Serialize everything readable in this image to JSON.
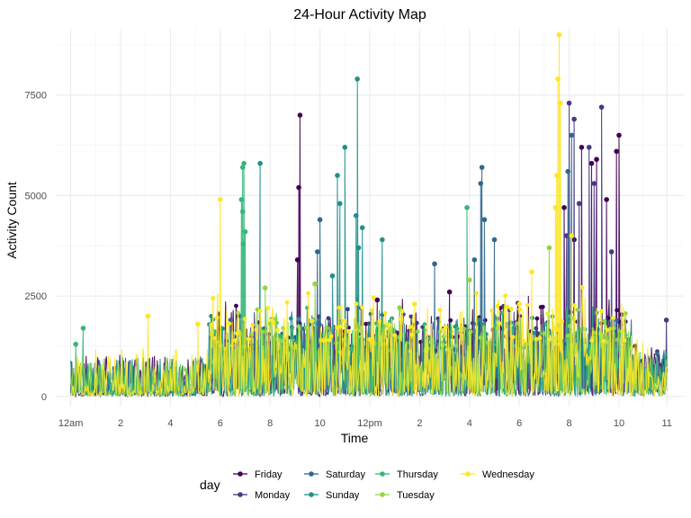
{
  "chart_data": {
    "type": "line",
    "title": "24-Hour Activity Map",
    "xlabel": "Time",
    "ylabel": "Activity Count",
    "xlim": [
      -0.6,
      24.6
    ],
    "ylim": [
      -250,
      9150
    ],
    "x_ticks": [
      {
        "x": 0,
        "label": "12am"
      },
      {
        "x": 2,
        "label": "2"
      },
      {
        "x": 4,
        "label": "4"
      },
      {
        "x": 6,
        "label": "6"
      },
      {
        "x": 8,
        "label": "8"
      },
      {
        "x": 10,
        "label": "10"
      },
      {
        "x": 12,
        "label": "12pm"
      },
      {
        "x": 14,
        "label": "2"
      },
      {
        "x": 16,
        "label": "4"
      },
      {
        "x": 18,
        "label": "6"
      },
      {
        "x": 20,
        "label": "8"
      },
      {
        "x": 22,
        "label": "10"
      },
      {
        "x": 23.92,
        "label": "11"
      }
    ],
    "y_ticks": [
      {
        "y": 0,
        "label": "0"
      },
      {
        "y": 2500,
        "label": "2500"
      },
      {
        "y": 5000,
        "label": "5000"
      },
      {
        "y": 7500,
        "label": "7500"
      }
    ],
    "grid": true,
    "legend": {
      "title": "day",
      "position": "bottom"
    },
    "series": [
      {
        "name": "Friday",
        "color": "#440154",
        "peaks": [
          {
            "x": 9.2,
            "y": 7000
          },
          {
            "x": 9.15,
            "y": 5200
          },
          {
            "x": 9.1,
            "y": 3400
          },
          {
            "x": 19.8,
            "y": 4700
          },
          {
            "x": 20.5,
            "y": 6200
          },
          {
            "x": 20.9,
            "y": 5800
          },
          {
            "x": 21.1,
            "y": 5900
          },
          {
            "x": 21.5,
            "y": 4900
          },
          {
            "x": 22.0,
            "y": 6500
          },
          {
            "x": 21.9,
            "y": 6100
          },
          {
            "x": 20.2,
            "y": 3900
          },
          {
            "x": 12.3,
            "y": 2400
          },
          {
            "x": 15.2,
            "y": 2600
          }
        ],
        "baseline_max": 1400
      },
      {
        "name": "Monday",
        "color": "#443A83",
        "peaks": [
          {
            "x": 20.0,
            "y": 7300
          },
          {
            "x": 20.2,
            "y": 6900
          },
          {
            "x": 21.3,
            "y": 7200
          },
          {
            "x": 20.8,
            "y": 6200
          },
          {
            "x": 21.0,
            "y": 5300
          },
          {
            "x": 20.4,
            "y": 4800
          },
          {
            "x": 19.9,
            "y": 4000
          },
          {
            "x": 23.9,
            "y": 1900
          },
          {
            "x": 21.7,
            "y": 3600
          }
        ],
        "baseline_max": 1300
      },
      {
        "name": "Saturday",
        "color": "#31688E",
        "peaks": [
          {
            "x": 16.5,
            "y": 5700
          },
          {
            "x": 16.45,
            "y": 5300
          },
          {
            "x": 16.6,
            "y": 4400
          },
          {
            "x": 10.0,
            "y": 4400
          },
          {
            "x": 9.9,
            "y": 3600
          },
          {
            "x": 16.2,
            "y": 3400
          },
          {
            "x": 20.1,
            "y": 6500
          },
          {
            "x": 19.95,
            "y": 5600
          },
          {
            "x": 17.0,
            "y": 3900
          },
          {
            "x": 14.6,
            "y": 3300
          }
        ],
        "baseline_max": 1200
      },
      {
        "name": "Sunday",
        "color": "#21908C",
        "peaks": [
          {
            "x": 11.5,
            "y": 7900
          },
          {
            "x": 11.0,
            "y": 6200
          },
          {
            "x": 11.45,
            "y": 4500
          },
          {
            "x": 11.55,
            "y": 3700
          },
          {
            "x": 10.7,
            "y": 5500
          },
          {
            "x": 10.8,
            "y": 4800
          },
          {
            "x": 7.6,
            "y": 5800
          },
          {
            "x": 11.7,
            "y": 4200
          },
          {
            "x": 12.5,
            "y": 3900
          },
          {
            "x": 10.5,
            "y": 3000
          }
        ],
        "baseline_max": 1300
      },
      {
        "name": "Thursday",
        "color": "#35B779",
        "peaks": [
          {
            "x": 6.95,
            "y": 5800
          },
          {
            "x": 6.9,
            "y": 5700
          },
          {
            "x": 6.85,
            "y": 4900
          },
          {
            "x": 6.9,
            "y": 4600
          },
          {
            "x": 7.0,
            "y": 4100
          },
          {
            "x": 6.92,
            "y": 3800
          },
          {
            "x": 15.9,
            "y": 4700
          },
          {
            "x": 0.2,
            "y": 1300
          },
          {
            "x": 0.5,
            "y": 1700
          }
        ],
        "baseline_max": 1300
      },
      {
        "name": "Tuesday",
        "color": "#8FD744",
        "peaks": [
          {
            "x": 19.2,
            "y": 3700
          },
          {
            "x": 9.8,
            "y": 2800
          },
          {
            "x": 16.0,
            "y": 2900
          },
          {
            "x": 13.2,
            "y": 2200
          },
          {
            "x": 7.8,
            "y": 2700
          }
        ],
        "baseline_max": 1300
      },
      {
        "name": "Wednesday",
        "color": "#FDE725",
        "peaks": [
          {
            "x": 19.6,
            "y": 9000
          },
          {
            "x": 19.55,
            "y": 7900
          },
          {
            "x": 19.65,
            "y": 7300
          },
          {
            "x": 19.5,
            "y": 5500
          },
          {
            "x": 19.45,
            "y": 4700
          },
          {
            "x": 6.0,
            "y": 4900
          },
          {
            "x": 3.1,
            "y": 2000
          },
          {
            "x": 5.1,
            "y": 1800
          },
          {
            "x": 18.5,
            "y": 3100
          },
          {
            "x": 18.0,
            "y": 2300
          },
          {
            "x": 20.1,
            "y": 4000
          },
          {
            "x": 13.8,
            "y": 2300
          }
        ],
        "baseline_max": 1600
      }
    ]
  }
}
